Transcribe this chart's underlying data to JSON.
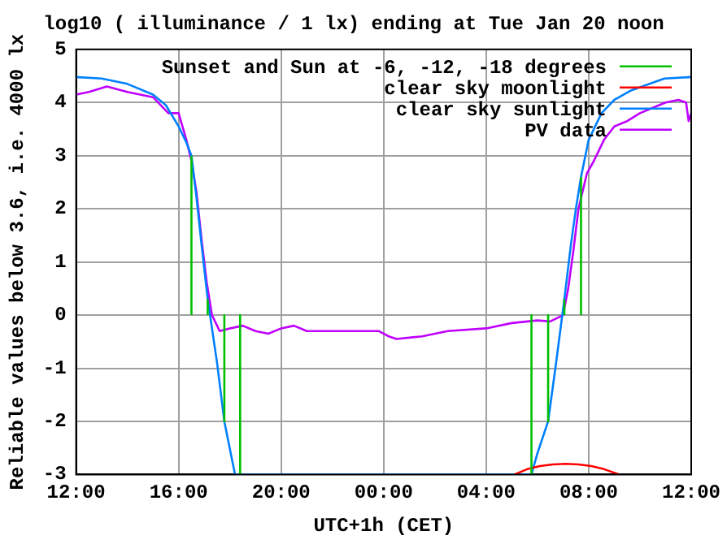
{
  "chart_data": {
    "type": "line",
    "title": "log10 ( illuminance / 1 lx) ending at Tue Jan 20 noon",
    "xlabel": "UTC+1h (CET)",
    "ylabel": "Reliable values below 3.6, i.e. 4000 lx",
    "xlim": [
      "--01-19T12:00",
      "--01-20T12:00"
    ],
    "xticks": [
      {
        "value": "--01-19T12:00",
        "label": "12:00"
      },
      {
        "value": "--01-19T16:00",
        "label": "16:00"
      },
      {
        "value": "--01-19T20:00",
        "label": "20:00"
      },
      {
        "value": "--01-20T00:00",
        "label": "00:00"
      },
      {
        "value": "--01-20T04:00",
        "label": "04:00"
      },
      {
        "value": "--01-20T08:00",
        "label": "08:00"
      },
      {
        "value": "--01-20T12:00",
        "label": "12:00"
      }
    ],
    "ylim": [
      -3,
      5
    ],
    "yticks": [
      -3,
      -2,
      -1,
      0,
      1,
      2,
      3,
      4,
      5
    ],
    "grid": true,
    "line_style": "solid",
    "legend": "top right",
    "marker": "none",
    "series": [
      {
        "name": "Sunset and Sun at -6, -12, -18 degrees",
        "color": "#00c000",
        "x": [
          "--01-19T16:30",
          "--01-19T16:30"
        ],
        "values": [
          0,
          3
        ]
      },
      {
        "color": "#00c000",
        "x": [
          "--01-19T17:08",
          "--01-19T17:08"
        ],
        "values": [
          0,
          0.3
        ]
      },
      {
        "color": "#00c000",
        "x": [
          "--01-19T17:47",
          "--01-19T17:47"
        ],
        "values": [
          0,
          -2
        ]
      },
      {
        "color": "#00c000",
        "x": [
          "--01-19T18:24",
          "--01-19T18:24"
        ],
        "values": [
          0,
          -3
        ]
      },
      {
        "color": "#00c000",
        "x": [
          "--01-20T05:46",
          "--01-20T05:46"
        ],
        "values": [
          0,
          -3
        ]
      },
      {
        "color": "#00c000",
        "x": [
          "--01-20T06:25",
          "--01-20T06:25"
        ],
        "values": [
          0,
          -2
        ]
      },
      {
        "color": "#00c000",
        "x": [
          "--01-20T07:03",
          "--01-20T07:03"
        ],
        "values": [
          0,
          0.3
        ]
      },
      {
        "color": "#00c000",
        "x": [
          "--01-20T07:42",
          "--01-20T07:42"
        ],
        "values": [
          0,
          2.6
        ]
      },
      {
        "name": "clear sky moonlight",
        "color": "#ff0000",
        "x": [
          "--01-20T05:06",
          "--01-20T05:36",
          "--01-20T06:06",
          "--01-20T06:36",
          "--01-20T07:06",
          "--01-20T07:36",
          "--01-20T08:06",
          "--01-20T08:36",
          "--01-20T09:12"
        ],
        "values": [
          -3,
          -2.9,
          -2.84,
          -2.81,
          -2.8,
          -2.81,
          -2.84,
          -2.9,
          -3
        ]
      },
      {
        "name": "clear sky sunlight",
        "color": "#0080ff",
        "x": [
          "--01-19T12:00",
          "--01-19T13:00",
          "--01-19T14:00",
          "--01-19T15:00",
          "--01-19T15:30",
          "--01-19T16:00",
          "--01-19T16:18",
          "--01-19T16:30",
          "--01-19T16:42",
          "--01-19T16:54",
          "--01-19T17:08",
          "--01-19T17:30",
          "--01-19T17:47",
          "--01-19T18:12",
          "--01-20T05:46",
          "--01-20T06:00",
          "--01-20T06:25",
          "--01-20T06:42",
          "--01-20T07:03",
          "--01-20T07:18",
          "--01-20T07:30",
          "--01-20T07:42",
          "--01-20T08:00",
          "--01-20T08:30",
          "--01-20T09:00",
          "--01-20T09:40",
          "--01-20T10:57",
          "--01-20T12:00"
        ],
        "values": [
          4.48,
          4.45,
          4.35,
          4.15,
          3.95,
          3.55,
          3.25,
          3,
          2.2,
          1.3,
          0.3,
          -0.9,
          -2,
          -3,
          -3,
          -2.6,
          -2,
          -1,
          0.3,
          1.3,
          2,
          2.6,
          3.3,
          3.8,
          4.05,
          4.23,
          4.45,
          4.48
        ]
      },
      {
        "name": "PV data",
        "color": "#c000ff",
        "x": [
          "--01-19T12:00",
          "--01-19T12:30",
          "--01-19T13:12",
          "--01-19T14:00",
          "--01-19T15:00",
          "--01-19T15:36",
          "--01-19T16:00",
          "--01-19T16:18",
          "--01-19T16:30",
          "--01-19T16:42",
          "--01-19T16:54",
          "--01-19T17:06",
          "--01-19T17:18",
          "--01-19T17:36",
          "--01-19T18:00",
          "--01-19T18:30",
          "--01-19T19:00",
          "--01-19T19:30",
          "--01-19T20:00",
          "--01-19T20:30",
          "--01-19T21:00",
          "--01-19T22:00",
          "--01-19T23:00",
          "--01-19T23:48",
          "--01-20T00:12",
          "--01-20T00:30",
          "--01-20T01:30",
          "--01-20T02:30",
          "--01-20T04:00",
          "--01-20T05:00",
          "--01-20T06:00",
          "--01-20T06:30",
          "--01-20T07:00",
          "--01-20T07:12",
          "--01-20T07:24",
          "--01-20T07:36",
          "--01-20T07:56",
          "--01-20T08:12",
          "--01-20T08:36",
          "--01-20T09:00",
          "--01-20T09:30",
          "--01-20T10:00",
          "--01-20T10:30",
          "--01-20T11:00",
          "--01-20T11:30",
          "--01-20T11:48",
          "--01-20T11:54",
          "--01-20T12:00"
        ],
        "values": [
          4.15,
          4.2,
          4.3,
          4.2,
          4.1,
          3.8,
          3.8,
          3.3,
          2.9,
          2.3,
          1.4,
          0.6,
          0,
          -0.3,
          -0.25,
          -0.2,
          -0.3,
          -0.35,
          -0.25,
          -0.2,
          -0.3,
          -0.3,
          -0.3,
          -0.3,
          -0.4,
          -0.45,
          -0.4,
          -0.3,
          -0.25,
          -0.15,
          -0.1,
          -0.12,
          0,
          0.5,
          1.2,
          2,
          2.67,
          2.9,
          3.3,
          3.55,
          3.65,
          3.8,
          3.9,
          4,
          4.05,
          4,
          3.65,
          3.8
        ]
      }
    ]
  }
}
